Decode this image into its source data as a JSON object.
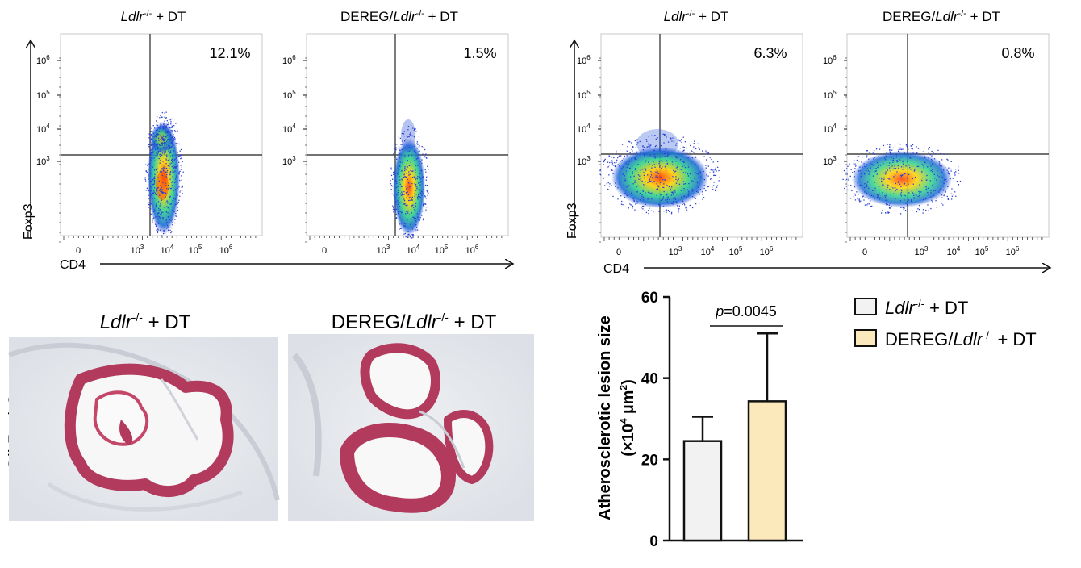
{
  "flow_sets": [
    {
      "y_axis_label": "Foxp3",
      "x_axis_label": "CD4",
      "panels": [
        {
          "title_italic": "Ldlr",
          "title_sup": "-/-",
          "title_rest": " + DT",
          "title_prefix": "",
          "percent": "12.1%"
        },
        {
          "title_italic": "Ldlr",
          "title_sup": "-/-",
          "title_rest": " + DT",
          "title_prefix": "DEREG/",
          "percent": "1.5%"
        }
      ],
      "y_ticks": [
        {
          "base": "10",
          "exp": "6"
        },
        {
          "base": "10",
          "exp": "5"
        },
        {
          "base": "10",
          "exp": "4"
        },
        {
          "base": "10",
          "exp": "3"
        }
      ],
      "x_ticks": [
        "0",
        "10|3",
        "10|4",
        "10|5",
        "10|6"
      ]
    },
    {
      "y_axis_label": "Foxp3",
      "x_axis_label": "CD4",
      "panels": [
        {
          "title_italic": "Ldlr",
          "title_sup": "-/-",
          "title_rest": " + DT",
          "title_prefix": "",
          "percent": "6.3%"
        },
        {
          "title_italic": "Ldlr",
          "title_sup": "-/-",
          "title_rest": " + DT",
          "title_prefix": "DEREG/",
          "percent": "0.8%"
        }
      ],
      "y_ticks": [
        {
          "base": "10",
          "exp": "6"
        },
        {
          "base": "10",
          "exp": "5"
        },
        {
          "base": "10",
          "exp": "4"
        },
        {
          "base": "10",
          "exp": "3"
        }
      ],
      "x_ticks": [
        "0",
        "10|3",
        "10|4",
        "10|5",
        "10|6"
      ]
    }
  ],
  "histology": {
    "side_label": "Oil Red O",
    "panels": [
      {
        "title_prefix": "",
        "title_italic": "Ldlr",
        "title_sup": "-/-",
        "title_rest": " + DT"
      },
      {
        "title_prefix": "DEREG/",
        "title_italic": "Ldlr",
        "title_sup": "-/-",
        "title_rest": " + DT"
      }
    ]
  },
  "chart_data": {
    "type": "bar",
    "categories": [
      "Ldlr-/- + DT",
      "DEREG/Ldlr-/- + DT"
    ],
    "values": [
      24.5,
      34.3
    ],
    "error_upper": [
      30.5,
      51.0
    ],
    "ylim": [
      0,
      60
    ],
    "yticks": [
      0,
      20,
      40,
      60
    ],
    "ylabel_line1": "Atherosclerotic lesion size",
    "ylabel_line2_pre": "(×10",
    "ylabel_line2_sup": "4",
    "ylabel_line2_mid": " µm",
    "ylabel_line2_sup2": "2",
    "ylabel_line2_post": ")",
    "pvalue_italic": "p",
    "pvalue_rest": "=0.0045",
    "colors": [
      "#f2f2f2",
      "#fbe8bb"
    ],
    "legend": [
      {
        "prefix": "",
        "italic": "Ldlr",
        "sup": "-/-",
        "rest": " + DT",
        "color": "#f2f2f2"
      },
      {
        "prefix": "DEREG/",
        "italic": "Ldlr",
        "sup": "-/-",
        "rest": " + DT",
        "color": "#fbe8bb"
      }
    ]
  }
}
